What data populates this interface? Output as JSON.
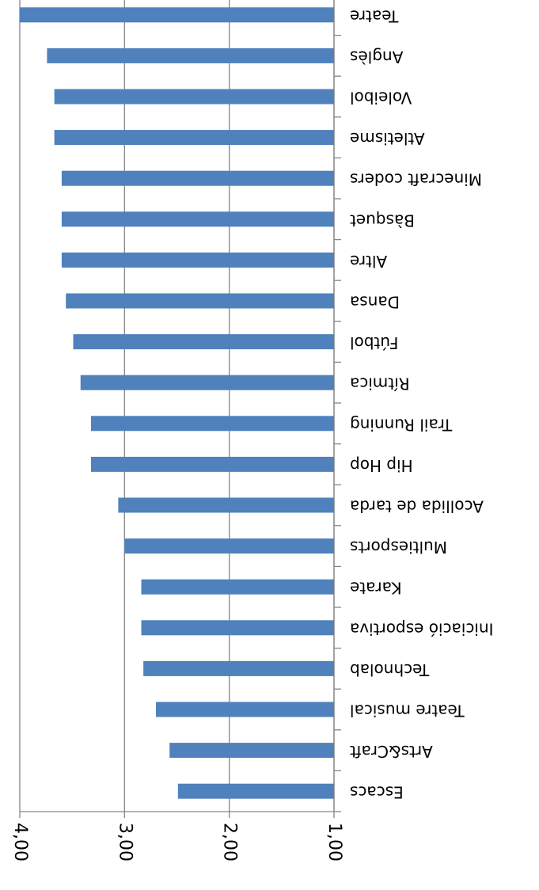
{
  "chart_data": {
    "type": "barh",
    "categories": [
      "Escacs",
      "Arts&Craft",
      "Teatre musical",
      "Technolab",
      "Iniciació esportiva",
      "Karate",
      "Multiesports",
      "Acollida de tarda",
      "Hip Hop",
      "Trail Running",
      "Rítmica",
      "Fútbol",
      "Dansa",
      "Altre",
      "Bàsquet",
      "Minecraft coders",
      "Atletisme",
      "Voleibol",
      "Anglès",
      "Teatre"
    ],
    "values": [
      2.49,
      2.57,
      2.7,
      2.82,
      2.84,
      2.84,
      3.0,
      3.06,
      3.32,
      3.32,
      3.42,
      3.49,
      3.56,
      3.6,
      3.6,
      3.6,
      3.67,
      3.67,
      3.74,
      4.0
    ],
    "color": "#4f81bd",
    "xlim": [
      1,
      4
    ],
    "xticks": [
      {
        "value": 1,
        "label": "1,00"
      },
      {
        "value": 2,
        "label": "2,00"
      },
      {
        "value": 3,
        "label": "3,00"
      },
      {
        "value": 4,
        "label": "4,00"
      }
    ],
    "grid": true
  }
}
